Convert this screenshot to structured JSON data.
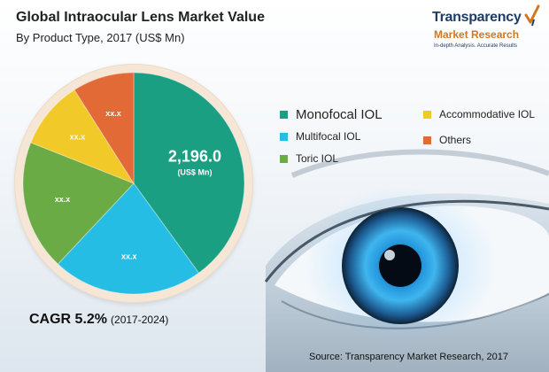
{
  "header": {
    "title": "Global Intraocular Lens Market Value",
    "subtitle": "By Product Type, 2017 (US$ Mn)"
  },
  "logo": {
    "line1": "Transparency",
    "line2": "Market Research",
    "line3": "In-depth Analysis. Accurate Results"
  },
  "colors": {
    "monofocal": "#1a9f83",
    "multifocal": "#25bde4",
    "toric": "#6bab45",
    "accommodative": "#f1c928",
    "others": "#e26a37"
  },
  "chart_data": {
    "type": "pie",
    "title": "Global Intraocular Lens Market Value",
    "subtitle": "By Product Type, 2017 (US$ Mn)",
    "slices": [
      {
        "name": "Monofocal IOL",
        "value": 2196.0,
        "label": "2,196.0",
        "sublabel": "(US$ Mn)",
        "share": 0.4,
        "color": "#1a9f83"
      },
      {
        "name": "Multifocal IOL",
        "value": null,
        "label": "xx.x",
        "share": 0.22,
        "color": "#25bde4"
      },
      {
        "name": "Toric IOL",
        "value": null,
        "label": "xx.x",
        "share": 0.19,
        "color": "#6bab45"
      },
      {
        "name": "Accommodative IOL",
        "value": null,
        "label": "xx.x",
        "share": 0.1,
        "color": "#f1c928"
      },
      {
        "name": "Others",
        "value": null,
        "label": "xx.x",
        "share": 0.09,
        "color": "#e26a37"
      }
    ],
    "legend": [
      "Monofocal IOL",
      "Accommodative IOL",
      "Multifocal IOL",
      "Others",
      "Toric IOL"
    ]
  },
  "footer": {
    "cagr_label": "CAGR 5.2%",
    "cagr_years": "(2017-2024)",
    "source": "Source: Transparency Market Research, 2017"
  }
}
